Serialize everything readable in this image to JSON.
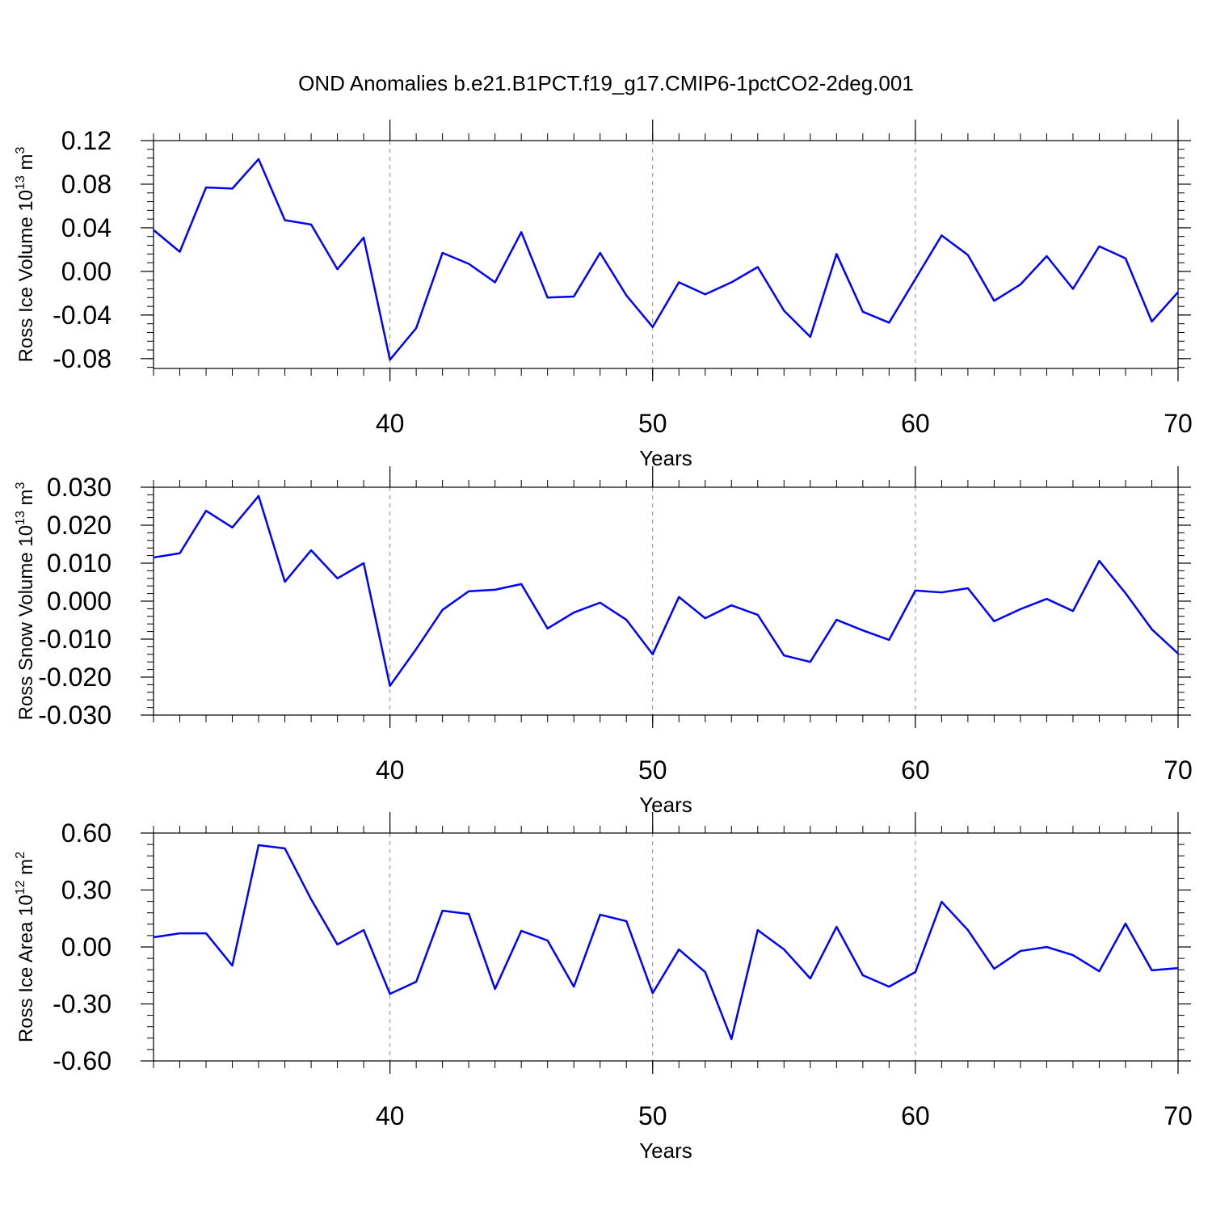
{
  "title": "OND Anomalies b.e21.B1PCT.f19_g17.CMIP6-1pctCO2-2deg.001",
  "chart_data": [
    {
      "type": "line",
      "xlabel": "Years",
      "ylabel": [
        "Ross Ice Volume 10",
        "13",
        " m",
        "3"
      ],
      "x": [
        31,
        32,
        33,
        34,
        35,
        36,
        37,
        38,
        39,
        40,
        41,
        42,
        43,
        44,
        45,
        46,
        47,
        48,
        49,
        50,
        51,
        52,
        53,
        54,
        55,
        56,
        57,
        58,
        59,
        60,
        61,
        62,
        63,
        64,
        65,
        66,
        67,
        68,
        69,
        70
      ],
      "series": [
        {
          "color": "#0000ff",
          "values": [
            0.038,
            0.018,
            0.077,
            0.076,
            0.103,
            0.047,
            0.043,
            0.002,
            0.031,
            -0.081,
            -0.052,
            0.017,
            0.007,
            -0.01,
            0.036,
            -0.024,
            -0.023,
            0.017,
            -0.022,
            -0.051,
            -0.01,
            -0.021,
            -0.01,
            0.004,
            -0.036,
            -0.06,
            0.016,
            -0.037,
            -0.047,
            -0.007,
            0.033,
            0.015,
            -0.027,
            -0.012,
            0.014,
            -0.016,
            0.023,
            0.012,
            -0.046,
            -0.019
          ]
        }
      ],
      "xlim": [
        31,
        70
      ],
      "xticks": [
        40,
        50,
        60,
        70
      ],
      "grid": true,
      "ylim": [
        -0.089,
        0.12
      ],
      "yticks": [
        0.12,
        0.08,
        0.04,
        {
          "value": 0,
          "label": "0.00"
        },
        -0.04,
        -0.08
      ]
    },
    {
      "type": "line",
      "xlabel": "Years",
      "ylabel": [
        "Ross Snow Volume 10",
        "13",
        " m",
        "3"
      ],
      "x": [
        31,
        32,
        33,
        34,
        35,
        36,
        37,
        38,
        39,
        40,
        41,
        42,
        43,
        44,
        45,
        46,
        47,
        48,
        49,
        50,
        51,
        52,
        53,
        54,
        55,
        56,
        57,
        58,
        59,
        60,
        61,
        62,
        63,
        64,
        65,
        66,
        67,
        68,
        69,
        70
      ],
      "series": [
        {
          "color": "#0000ff",
          "values": [
            0.0115,
            0.0126,
            0.0238,
            0.0194,
            0.0277,
            0.0051,
            0.0134,
            0.006,
            0.01,
            -0.0223,
            -0.0126,
            -0.0023,
            0.0026,
            0.003,
            0.0045,
            -0.0072,
            -0.003,
            -0.0004,
            -0.0049,
            -0.014,
            0.0011,
            -0.0045,
            -0.0011,
            -0.0036,
            -0.0143,
            -0.016,
            -0.0049,
            -0.0077,
            -0.0102,
            0.0028,
            0.0023,
            0.0034,
            -0.0053,
            -0.0021,
            0.0006,
            -0.0026,
            0.0106,
            0.0021,
            -0.0074,
            -0.0138
          ]
        }
      ],
      "xlim": [
        31,
        70
      ],
      "xticks": [
        40,
        50,
        60,
        70
      ],
      "grid": true,
      "ylim": [
        -0.03,
        0.03
      ],
      "yticks": [
        {
          "value": 0.03,
          "label": "0.030"
        },
        {
          "value": 0.02,
          "label": "0.020"
        },
        {
          "value": 0.01,
          "label": "0.010"
        },
        {
          "value": 0,
          "label": "0.000"
        },
        {
          "value": -0.01,
          "label": "-0.010"
        },
        {
          "value": -0.02,
          "label": "-0.020"
        },
        {
          "value": -0.03,
          "label": "-0.030"
        }
      ]
    },
    {
      "type": "line",
      "xlabel": "Years",
      "ylabel": [
        "Ross Ice Area 10",
        "12",
        " m",
        "2"
      ],
      "x": [
        31,
        32,
        33,
        34,
        35,
        36,
        37,
        38,
        39,
        40,
        41,
        42,
        43,
        44,
        45,
        46,
        47,
        48,
        49,
        50,
        51,
        52,
        53,
        54,
        55,
        56,
        57,
        58,
        59,
        60,
        61,
        62,
        63,
        64,
        65,
        66,
        67,
        68,
        69,
        70
      ],
      "series": [
        {
          "color": "#0000ff",
          "values": [
            0.051,
            0.072,
            0.072,
            -0.098,
            0.536,
            0.519,
            0.251,
            0.013,
            0.089,
            -0.247,
            -0.183,
            0.191,
            0.174,
            -0.221,
            0.085,
            0.034,
            -0.209,
            0.17,
            0.136,
            -0.243,
            -0.013,
            -0.132,
            -0.485,
            0.089,
            -0.013,
            -0.166,
            0.106,
            -0.149,
            -0.209,
            -0.132,
            0.238,
            0.089,
            -0.115,
            -0.021,
            0.0,
            -0.043,
            -0.128,
            0.123,
            -0.123,
            -0.111
          ]
        }
      ],
      "xlim": [
        31,
        70
      ],
      "xticks": [
        40,
        50,
        60,
        70
      ],
      "grid": true,
      "ylim": [
        -0.6,
        0.6
      ],
      "yticks": [
        {
          "value": 0.6,
          "label": "0.60"
        },
        {
          "value": 0.3,
          "label": "0.30"
        },
        {
          "value": 0,
          "label": "0.00"
        },
        {
          "value": -0.3,
          "label": "-0.30"
        },
        {
          "value": -0.6,
          "label": "-0.60"
        }
      ]
    }
  ]
}
